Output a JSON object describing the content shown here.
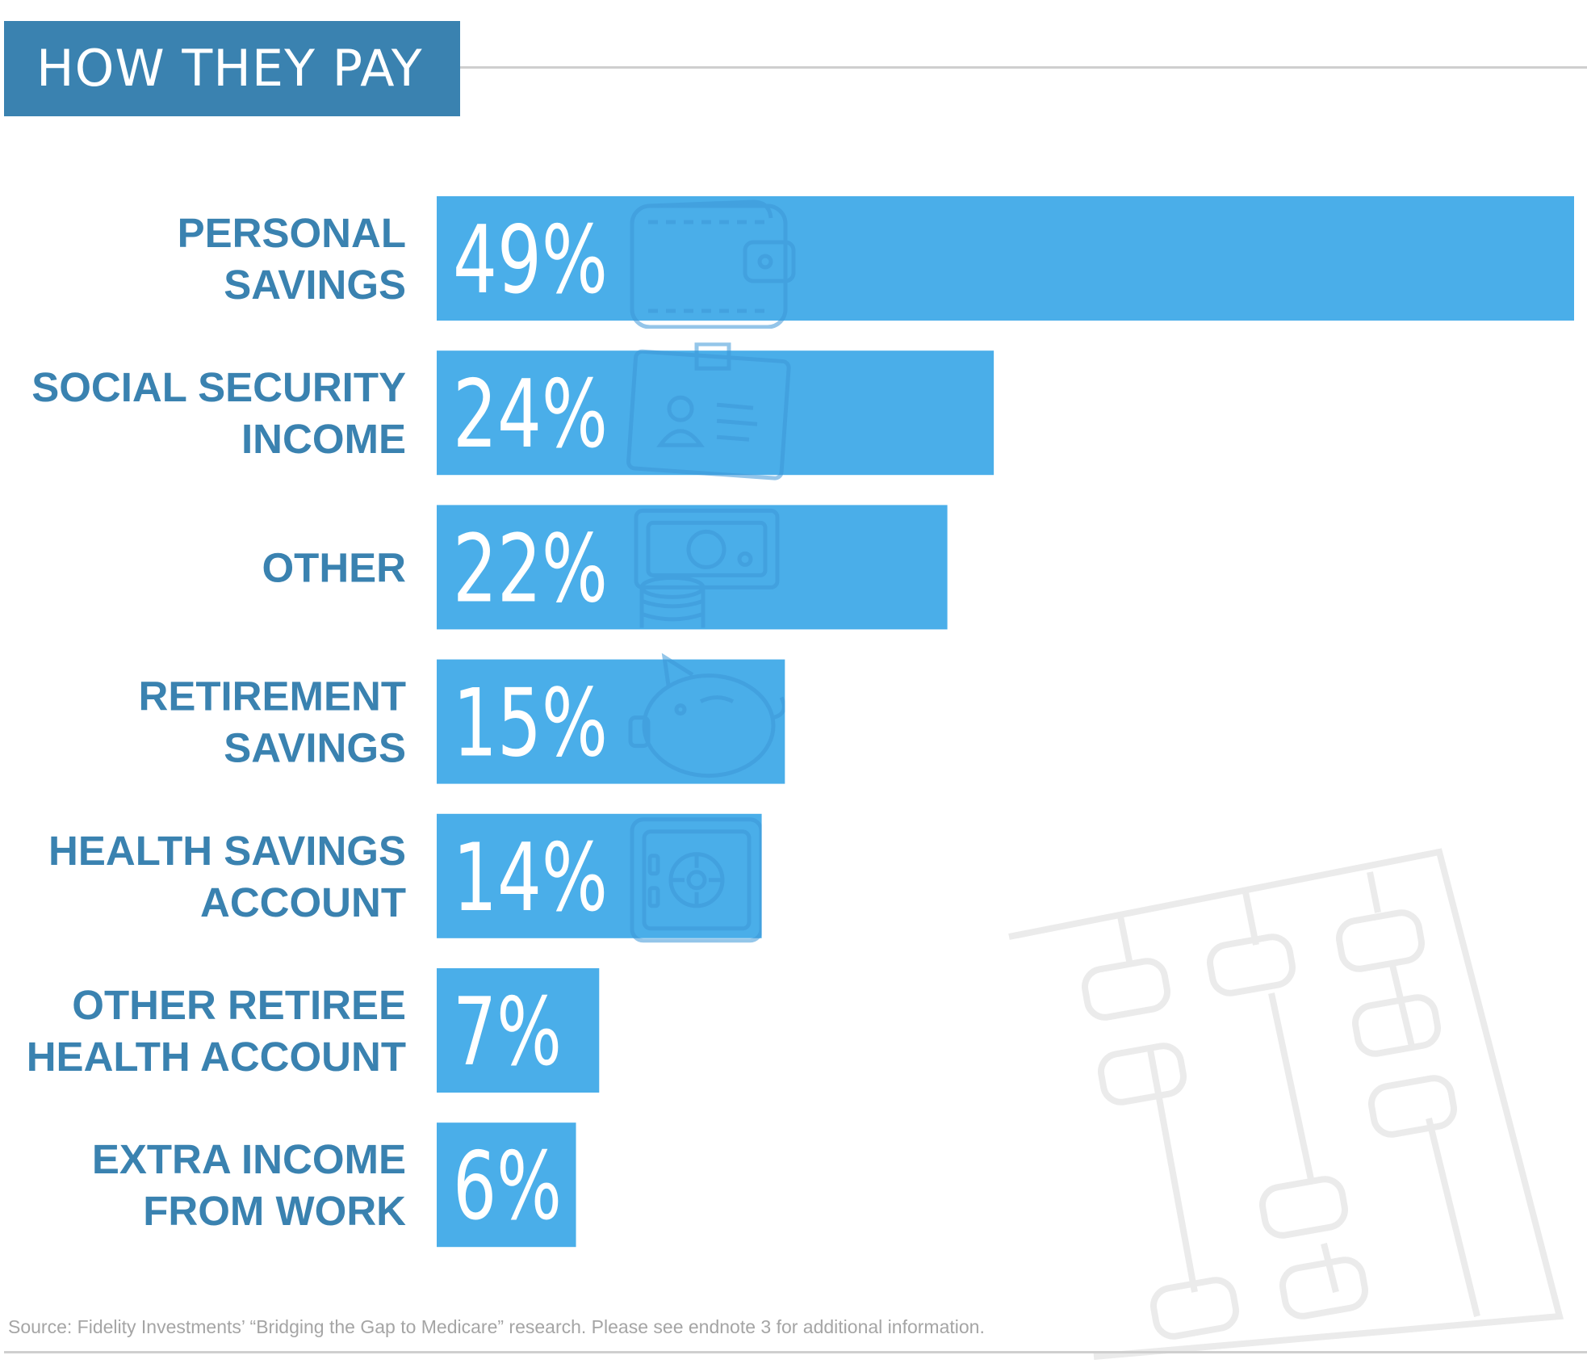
{
  "header": {
    "title": "HOW THEY PAY"
  },
  "source": "Source: Fidelity Investments’ “Bridging the Gap to Medicare” research. Please see endnote 3 for additional information.",
  "colors": {
    "bar": "#4aaee9",
    "label": "#3a82b0",
    "header_bg": "#3a82b0",
    "rule": "#cfcfcf",
    "icon_stroke": "#3d97d8",
    "abacus_stroke": "#ebebeb"
  },
  "chart_data": {
    "type": "bar",
    "orientation": "horizontal",
    "title": "HOW THEY PAY",
    "categories": [
      [
        "PERSONAL",
        "SAVINGS"
      ],
      [
        "SOCIAL SECURITY",
        "INCOME"
      ],
      [
        "OTHER"
      ],
      [
        "RETIREMENT",
        "SAVINGS"
      ],
      [
        "HEALTH SAVINGS",
        "ACCOUNT"
      ],
      [
        "OTHER RETIREE",
        "HEALTH ACCOUNT"
      ],
      [
        "EXTRA INCOME",
        "FROM WORK"
      ]
    ],
    "values": [
      49,
      24,
      22,
      15,
      14,
      7,
      6
    ],
    "value_labels": [
      "49%",
      "24%",
      "22%",
      "15%",
      "14%",
      "7%",
      "6%"
    ],
    "icons": [
      "wallet-icon",
      "id-card-icon",
      "cash-coins-icon",
      "piggy-bank-icon",
      "safe-icon",
      "",
      ""
    ],
    "xlim": [
      0,
      49
    ],
    "grid": false,
    "legend": "none"
  }
}
